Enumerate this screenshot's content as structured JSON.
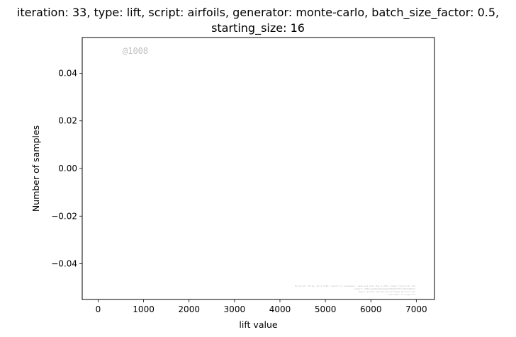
{
  "chart_data": {
    "type": "bar",
    "title_lines": [
      "iteration: 33, type: lift, script: airfoils, generator: monte-carlo, batch_size_factor: 0.5,",
      "starting_size: 16"
    ],
    "xlabel": "lift value",
    "ylabel": "Number of samples",
    "xlim": [
      -350,
      7400
    ],
    "ylim": [
      -0.055,
      0.055
    ],
    "x_ticks": [
      0,
      1000,
      2000,
      3000,
      4000,
      5000,
      6000,
      7000
    ],
    "x_tick_labels": [
      "0",
      "1000",
      "2000",
      "3000",
      "4000",
      "5000",
      "6000",
      "7000"
    ],
    "y_ticks": [
      -0.04,
      -0.02,
      0.0,
      0.02,
      0.04
    ],
    "y_tick_labels": [
      "−0.04",
      "−0.02",
      "0.00",
      "0.02",
      "0.04"
    ],
    "series": [],
    "grid": false,
    "watermark": "@1008",
    "footnote_lines": [
      "By Kainit Shree (at 0.9795) shelfit.e.lookamend .name and Kenn May 4 2021, email:rassfordt.sts",
      "Commit: 100bcaed83ed3ba9e9a9f0bd32f77a7f02e00471",
      "Repo: github.com:kainit/airfoams-perfect.git",
      "Username: no-login-71"
    ]
  }
}
